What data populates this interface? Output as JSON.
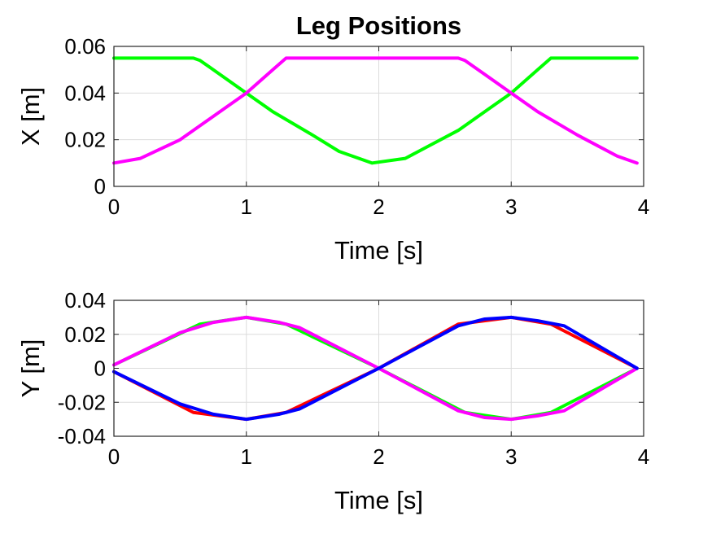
{
  "chart_data": [
    {
      "type": "line",
      "title": "Leg Positions",
      "xlabel": "Time [s]",
      "ylabel": "X [m]",
      "xlim": [
        0,
        4
      ],
      "ylim": [
        0,
        0.06
      ],
      "xticks": [
        "0",
        "1",
        "2",
        "3",
        "4"
      ],
      "yticks": [
        "0",
        "0.02",
        "0.04",
        "0.06"
      ],
      "xtick_values": [
        0,
        1,
        2,
        3,
        4
      ],
      "ytick_values": [
        0,
        0.02,
        0.04,
        0.06
      ],
      "grid": true,
      "series": [
        {
          "color": "#00ff00",
          "x": [
            0,
            0.6,
            0.65,
            0.8,
            1.0,
            1.2,
            1.5,
            1.7,
            1.95,
            2.2,
            2.4,
            2.6,
            2.8,
            3.0,
            3.2,
            3.3,
            3.4,
            3.95
          ],
          "y": [
            0.055,
            0.055,
            0.054,
            0.048,
            0.04,
            0.032,
            0.022,
            0.015,
            0.01,
            0.012,
            0.018,
            0.024,
            0.032,
            0.04,
            0.05,
            0.055,
            0.055,
            0.055
          ]
        },
        {
          "color": "#ff00ff",
          "x": [
            0,
            0.2,
            0.5,
            0.8,
            1.0,
            1.2,
            1.3,
            1.4,
            2.6,
            2.65,
            2.8,
            3.0,
            3.2,
            3.5,
            3.8,
            3.95
          ],
          "y": [
            0.01,
            0.012,
            0.02,
            0.032,
            0.04,
            0.05,
            0.055,
            0.055,
            0.055,
            0.054,
            0.048,
            0.04,
            0.032,
            0.022,
            0.013,
            0.01
          ]
        }
      ]
    },
    {
      "type": "line",
      "title": "",
      "xlabel": "Time [s]",
      "ylabel": "Y [m]",
      "xlim": [
        0,
        4
      ],
      "ylim": [
        -0.04,
        0.04
      ],
      "xticks": [
        "0",
        "1",
        "2",
        "3",
        "4"
      ],
      "yticks": [
        "-0.04",
        "-0.02",
        "0",
        "0.02",
        "0.04"
      ],
      "xtick_values": [
        0,
        1,
        2,
        3,
        4
      ],
      "ytick_values": [
        -0.04,
        -0.02,
        0,
        0.02,
        0.04
      ],
      "grid": true,
      "series": [
        {
          "color": "#00ff00",
          "x": [
            0,
            0.65,
            1.0,
            1.3,
            2.0,
            2.65,
            3.0,
            3.3,
            3.95
          ],
          "y": [
            0.002,
            0.026,
            0.03,
            0.026,
            0.0,
            -0.026,
            -0.03,
            -0.026,
            0.0
          ]
        },
        {
          "color": "#ff0000",
          "x": [
            0,
            0.6,
            1.0,
            1.3,
            2.0,
            2.6,
            3.0,
            3.3,
            3.95
          ],
          "y": [
            -0.002,
            -0.026,
            -0.03,
            -0.026,
            0.0,
            0.026,
            0.03,
            0.026,
            0.0
          ]
        },
        {
          "color": "#ff00ff",
          "x": [
            0,
            0.5,
            0.75,
            1.0,
            1.25,
            1.4,
            2.0,
            2.6,
            2.8,
            3.0,
            3.2,
            3.4,
            3.95
          ],
          "y": [
            0.002,
            0.021,
            0.027,
            0.03,
            0.027,
            0.024,
            0.0,
            -0.025,
            -0.029,
            -0.03,
            -0.028,
            -0.025,
            0.0
          ]
        },
        {
          "color": "#0000ff",
          "x": [
            0,
            0.5,
            0.75,
            1.0,
            1.25,
            1.4,
            2.0,
            2.6,
            2.8,
            3.0,
            3.2,
            3.4,
            3.95
          ],
          "y": [
            -0.002,
            -0.021,
            -0.027,
            -0.03,
            -0.027,
            -0.024,
            0.0,
            0.025,
            0.029,
            0.03,
            0.028,
            0.025,
            0.0
          ]
        }
      ]
    }
  ]
}
